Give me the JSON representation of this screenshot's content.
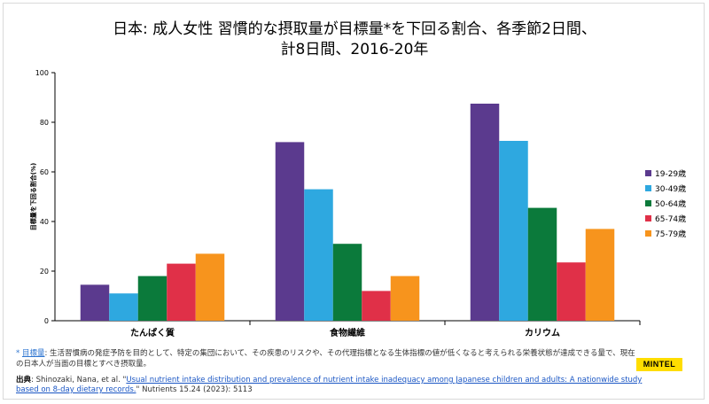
{
  "title": {
    "line1": "日本: 成人女性  習慣的な摂取量が目標量*を下回る割合、各季節2日間、",
    "line2": "計8日間、2016-20年"
  },
  "chart_data": {
    "type": "bar",
    "categories": [
      "たんぱく質",
      "食物繊維",
      "カリウム"
    ],
    "series": [
      {
        "name": "19-29歳",
        "color": "#5b3a8e",
        "values": [
          14.5,
          72,
          87.5
        ]
      },
      {
        "name": "30-49歳",
        "color": "#2ea8e0",
        "values": [
          11,
          53,
          72.5
        ]
      },
      {
        "name": "50-64歳",
        "color": "#0b7a3b",
        "values": [
          18,
          31,
          45.5
        ]
      },
      {
        "name": "65-74歳",
        "color": "#e03048",
        "values": [
          23,
          12,
          23.5
        ]
      },
      {
        "name": "75-79歳",
        "color": "#f7941d",
        "values": [
          27,
          18,
          37
        ]
      }
    ],
    "ylabel": "目標量を下回る割合(%)",
    "ylim": [
      0,
      100
    ],
    "yticks": [
      0,
      20,
      40,
      60,
      80,
      100
    ],
    "legend_position": "right"
  },
  "footnote": {
    "star": "*",
    "term": "目標量",
    "text": ": 生活習慣病の発症予防を目的として、特定の集団において、その疾患のリスクや、その代理指標となる生体指標の値が低くなると考えられる栄養状態が達成できる量で、現在の日本人が当面の目標とすべき摂取量。"
  },
  "source": {
    "label": "出典",
    "authors": ": Shinozaki, Nana, et al. \"",
    "link_text": "Usual nutrient intake distribution and prevalence of nutrient intake inadequacy among Japanese children and adults: A nationwide study based on 8-day dietary records.",
    "suffix": "\" Nutrients 15.24 (2023): 5113"
  },
  "logo": "MINTEL"
}
